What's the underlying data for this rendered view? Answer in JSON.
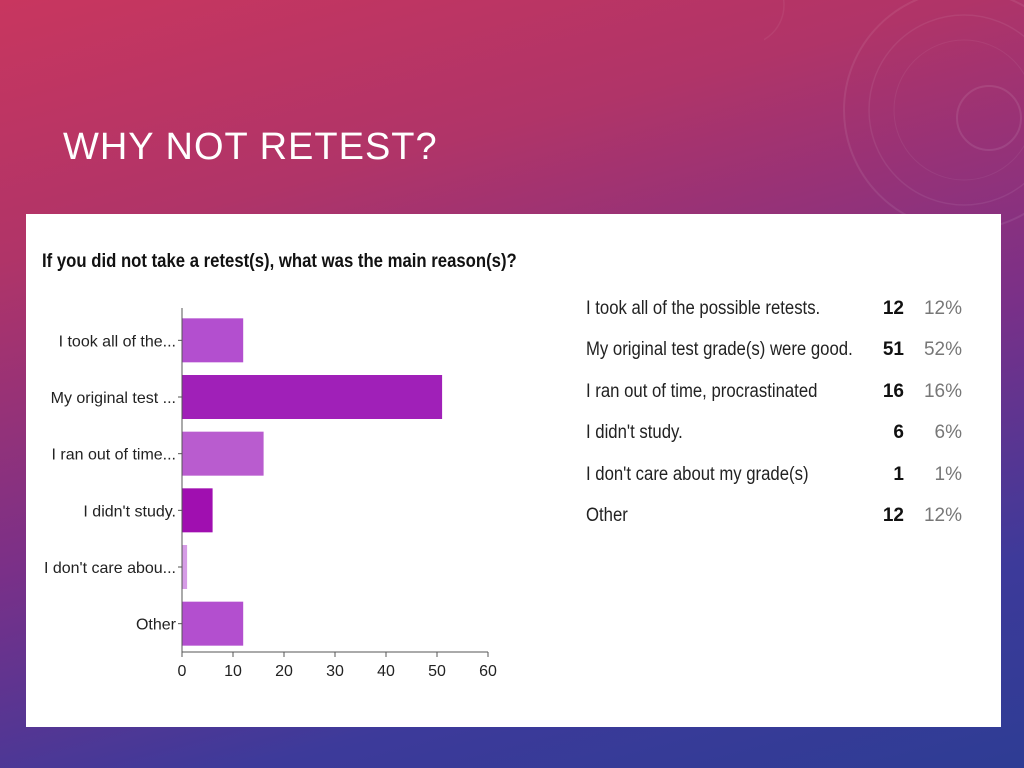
{
  "slide": {
    "title": "WHY NOT RETEST?"
  },
  "chart_data": {
    "type": "bar",
    "orientation": "horizontal",
    "title": "If you did not take a retest(s), what was the main reason(s)?",
    "categories": [
      "I took all of the...",
      "My original test ...",
      "I ran out of time...",
      "I didn't study.",
      "I don't care abou...",
      "Other"
    ],
    "values": [
      12,
      51,
      16,
      6,
      1,
      12
    ],
    "xlim": [
      0,
      60
    ],
    "xticks": [
      0,
      10,
      20,
      30,
      40,
      50,
      60
    ],
    "grid": false,
    "colors": [
      "#b34fcf",
      "#a020b8",
      "#b95ccf",
      "#a00fb0",
      "#d69ce6",
      "#b34fcf"
    ]
  },
  "summary": [
    {
      "label": "I took all of the possible retests.",
      "count": "12",
      "percent": "12%"
    },
    {
      "label": "My original test grade(s) were good.",
      "count": "51",
      "percent": "52%"
    },
    {
      "label": "I ran out of time, procrastinated",
      "count": "16",
      "percent": "16%"
    },
    {
      "label": "I didn't study.",
      "count": "6",
      "percent": "6%"
    },
    {
      "label": "I don't care about my grade(s)",
      "count": "1",
      "percent": "1%"
    },
    {
      "label": "Other",
      "count": "12",
      "percent": "12%"
    }
  ]
}
